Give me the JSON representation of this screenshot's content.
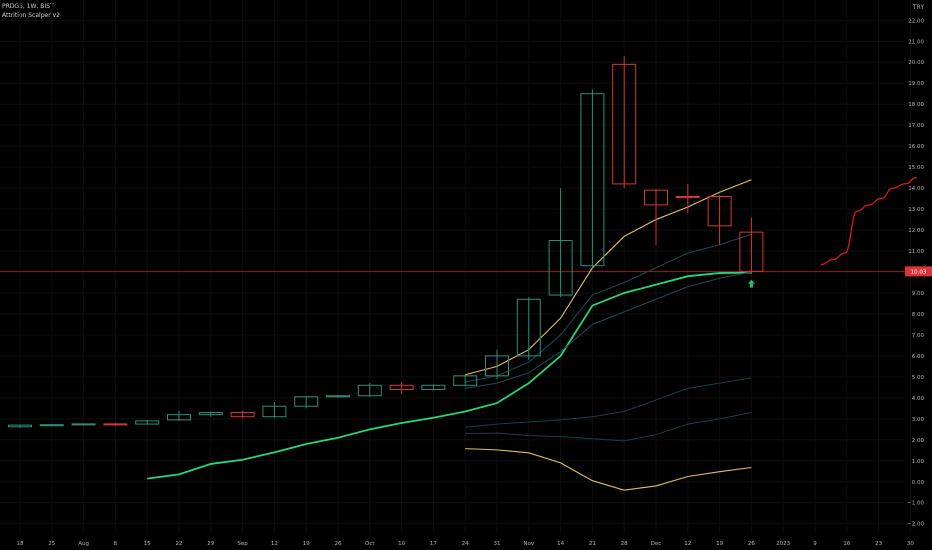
{
  "legend": {
    "symbol_line": "PRDGS, 1W, BIST",
    "indicator_line": "Attrition Scalper v2"
  },
  "currency": "TRY",
  "price_label": "10.03",
  "chart_data": {
    "type": "candlestick",
    "x_ticks": [
      "18",
      "25",
      "Aug",
      "8",
      "15",
      "22",
      "29",
      "Sep",
      "12",
      "19",
      "26",
      "Oct",
      "10",
      "17",
      "24",
      "31",
      "Nov",
      "14",
      "21",
      "28",
      "Dec",
      "12",
      "19",
      "26",
      "2023",
      "9",
      "16",
      "23",
      "30"
    ],
    "y_ticks": [
      -2,
      -1,
      0,
      1,
      2,
      3,
      4,
      5,
      6,
      7,
      8,
      9,
      10,
      11,
      12,
      13,
      14,
      15,
      16,
      17,
      18,
      19,
      20,
      21,
      22
    ],
    "y_tick_labels": [
      "−2.00",
      "−1.00",
      "0.00",
      "1.00",
      "2.00",
      "3.00",
      "4.00",
      "5.00",
      "6.00",
      "7.00",
      "8.00",
      "9.00",
      "10.00",
      "11.00",
      "12.00",
      "13.00",
      "14.00",
      "15.00",
      "16.00",
      "17.00",
      "18.00",
      "19.00",
      "20.00",
      "21.00",
      "22.00"
    ],
    "ylim": [
      -2.3,
      22.3
    ],
    "horizontal_line": 10.03,
    "candles": [
      {
        "o": 2.62,
        "h": 2.72,
        "l": 2.58,
        "c": 2.7
      },
      {
        "o": 2.7,
        "h": 2.75,
        "l": 2.66,
        "c": 2.72
      },
      {
        "o": 2.72,
        "h": 2.78,
        "l": 2.68,
        "c": 2.76
      },
      {
        "o": 2.76,
        "h": 2.8,
        "l": 2.68,
        "c": 2.72
      },
      {
        "o": 2.75,
        "h": 2.95,
        "l": 2.72,
        "c": 2.9
      },
      {
        "o": 2.95,
        "h": 3.4,
        "l": 2.9,
        "c": 3.2
      },
      {
        "o": 3.2,
        "h": 3.35,
        "l": 3.1,
        "c": 3.3
      },
      {
        "o": 3.3,
        "h": 3.4,
        "l": 3.05,
        "c": 3.1
      },
      {
        "o": 3.1,
        "h": 3.8,
        "l": 3.05,
        "c": 3.6
      },
      {
        "o": 3.6,
        "h": 4.1,
        "l": 3.5,
        "c": 4.05
      },
      {
        "o": 4.05,
        "h": 4.15,
        "l": 4.0,
        "c": 4.1
      },
      {
        "o": 4.1,
        "h": 4.7,
        "l": 4.05,
        "c": 4.6
      },
      {
        "o": 4.6,
        "h": 4.75,
        "l": 4.2,
        "c": 4.4
      },
      {
        "o": 4.4,
        "h": 4.65,
        "l": 4.35,
        "c": 4.6
      },
      {
        "o": 4.6,
        "h": 5.1,
        "l": 4.55,
        "c": 5.05
      },
      {
        "o": 5.05,
        "h": 6.3,
        "l": 4.9,
        "c": 6.0
      },
      {
        "o": 6.0,
        "h": 8.8,
        "l": 5.8,
        "c": 8.7
      },
      {
        "o": 8.9,
        "h": 14.0,
        "l": 8.8,
        "c": 11.5
      },
      {
        "o": 10.3,
        "h": 18.7,
        "l": 10.2,
        "c": 18.5
      },
      {
        "o": 19.9,
        "h": 20.3,
        "l": 14.0,
        "c": 14.2
      },
      {
        "o": 13.9,
        "h": 13.95,
        "l": 11.3,
        "c": 13.2
      },
      {
        "o": 13.6,
        "h": 14.2,
        "l": 12.8,
        "c": 13.55
      },
      {
        "o": 13.6,
        "h": 13.65,
        "l": 11.3,
        "c": 12.2
      },
      {
        "o": 11.9,
        "h": 12.6,
        "l": 9.9,
        "c": 10.03
      }
    ],
    "series": [
      {
        "start_index": 4,
        "values": [
          0.15,
          0.35,
          0.85,
          1.05,
          1.4,
          1.8,
          2.1,
          2.5,
          2.8,
          3.05,
          3.35,
          3.75,
          4.7,
          6.0,
          8.4,
          9.0,
          9.4,
          9.8,
          9.95,
          9.97
        ]
      },
      {
        "start_index": 14,
        "values": [
          5.1,
          5.5,
          6.3,
          7.8,
          10.2,
          11.7,
          12.5,
          13.1,
          13.8,
          14.4
        ]
      },
      {
        "start_index": 14,
        "values": [
          4.75,
          5.05,
          5.7,
          7.0,
          8.9,
          9.5,
          10.2,
          10.9,
          11.3,
          11.8
        ]
      },
      {
        "start_index": 14,
        "values": [
          4.45,
          4.7,
          5.2,
          6.2,
          7.5,
          8.1,
          8.7,
          9.3,
          9.7,
          10.0
        ]
      },
      {
        "start_index": 14,
        "values": [
          2.6,
          2.75,
          2.85,
          2.95,
          3.1,
          3.35,
          3.9,
          4.45,
          4.7,
          4.95
        ]
      },
      {
        "start_index": 14,
        "values": [
          2.3,
          2.32,
          2.2,
          2.15,
          2.05,
          1.95,
          2.25,
          2.75,
          3.0,
          3.3
        ]
      },
      {
        "start_index": 14,
        "values": [
          1.58,
          1.52,
          1.38,
          0.9,
          0.05,
          -0.4,
          -0.2,
          0.25,
          0.48,
          0.68
        ]
      },
      {
        "start_index": 25,
        "values": [
          10.35,
          10.6,
          10.9,
          12.9,
          13.2,
          13.5,
          14.0,
          14.2,
          14.5
        ]
      }
    ],
    "signal_marker": {
      "index": 23,
      "value": 9.4
    }
  }
}
